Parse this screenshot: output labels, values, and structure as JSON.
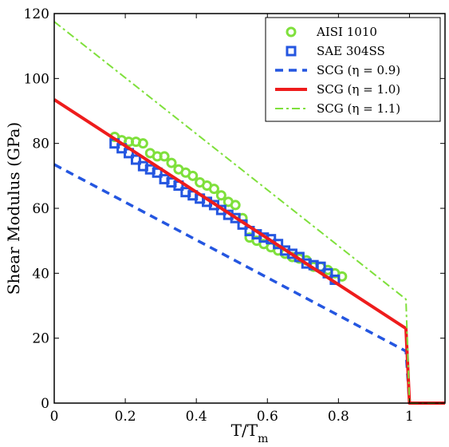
{
  "chart_data": {
    "type": "line",
    "title": "",
    "xlabel": "T/T",
    "xlabel_sub": "m",
    "ylabel": "Shear Modulus (GPa)",
    "xlim": [
      0,
      1.1
    ],
    "ylim": [
      0,
      120
    ],
    "xticks": [
      0,
      0.2,
      0.4,
      0.6,
      0.8,
      1
    ],
    "xtick_labels": [
      "0",
      "0.2",
      "0.4",
      "0.6",
      "0.8",
      "1"
    ],
    "yticks": [
      0,
      20,
      40,
      60,
      80,
      100,
      120
    ],
    "ytick_labels": [
      "0",
      "20",
      "40",
      "60",
      "80",
      "100",
      "120"
    ],
    "grid": false,
    "legend_position": "top-right",
    "series": [
      {
        "name": "AISI 1010",
        "kind": "scatter",
        "marker": "circle",
        "color": "#7fe03c",
        "x": [
          0.17,
          0.19,
          0.21,
          0.23,
          0.25,
          0.27,
          0.29,
          0.31,
          0.33,
          0.35,
          0.37,
          0.39,
          0.41,
          0.43,
          0.45,
          0.47,
          0.49,
          0.51,
          0.53,
          0.55,
          0.57,
          0.59,
          0.61,
          0.63,
          0.65,
          0.67,
          0.69,
          0.71,
          0.73,
          0.75,
          0.77,
          0.79,
          0.81
        ],
        "y": [
          82,
          81,
          80.5,
          80.5,
          80,
          77,
          76,
          76,
          74,
          72,
          71,
          70,
          68,
          67,
          66,
          64,
          62,
          61,
          57,
          51,
          50,
          49,
          48,
          47,
          46,
          45,
          44.5,
          44,
          42,
          42,
          41,
          40,
          39
        ]
      },
      {
        "name": "SAE 304SS",
        "kind": "scatter",
        "marker": "square",
        "color": "#2456e0",
        "x": [
          0.17,
          0.19,
          0.21,
          0.23,
          0.25,
          0.27,
          0.29,
          0.31,
          0.33,
          0.35,
          0.37,
          0.39,
          0.41,
          0.43,
          0.45,
          0.47,
          0.49,
          0.51,
          0.53,
          0.55,
          0.57,
          0.59,
          0.61,
          0.63,
          0.65,
          0.67,
          0.69,
          0.71,
          0.73,
          0.75,
          0.77,
          0.79
        ],
        "y": [
          80,
          78.5,
          77,
          75,
          73,
          72,
          71,
          69,
          68,
          67,
          65,
          64,
          63,
          62,
          61,
          59.5,
          58,
          57,
          55,
          53,
          52,
          51,
          50.5,
          49,
          47,
          46,
          45,
          43,
          42.5,
          42,
          40,
          38
        ]
      },
      {
        "name": "SCG (η = 0.9)",
        "kind": "line",
        "dash": "dashed",
        "color": "#2456e0",
        "x": [
          0,
          0.99,
          1.0,
          1.1
        ],
        "y": [
          73.5,
          16,
          0,
          0
        ]
      },
      {
        "name": "SCG (η = 1.0)",
        "kind": "line",
        "dash": "solid",
        "color": "#ee1c1c",
        "x": [
          0,
          0.99,
          1.0,
          1.1
        ],
        "y": [
          93.5,
          23,
          0,
          0
        ]
      },
      {
        "name": "SCG (η = 1.1)",
        "kind": "line",
        "dash": "dashdot",
        "color": "#7fe03c",
        "x": [
          0,
          0.99,
          1.0,
          1.1
        ],
        "y": [
          117.5,
          32,
          0,
          0
        ]
      }
    ]
  }
}
